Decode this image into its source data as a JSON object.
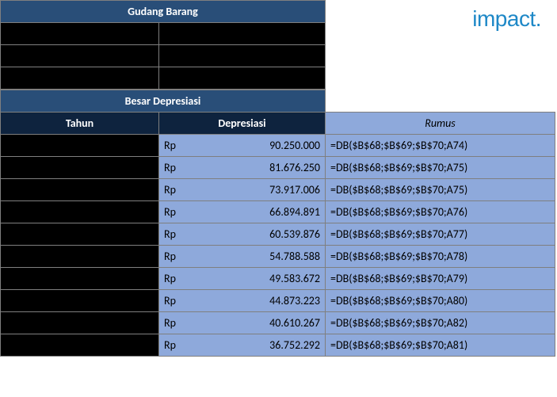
{
  "logo_text": "impact.",
  "colors": {
    "navy_header": "#294e78",
    "navy_dark": "#0e233e",
    "black": "#000000",
    "blue_cell": "#8ea9db",
    "border": "#7f7f7f",
    "logo_color": "#1e88c7",
    "white": "#ffffff"
  },
  "top_table": {
    "title": "Gudang Barang",
    "rows": [
      {
        "label": "",
        "value": ""
      },
      {
        "label": "",
        "value": ""
      },
      {
        "label": "",
        "value": ""
      }
    ]
  },
  "dep_table": {
    "section_title": "Besar Depresiasi",
    "col_year": "Tahun",
    "col_dep": "Depresiasi",
    "col_formula": "Rumus",
    "currency": "Rp",
    "rows": [
      {
        "year": "",
        "value": "90.250.000",
        "formula": "=DB($B$68;$B$69;$B$70;A74)"
      },
      {
        "year": "",
        "value": "81.676.250",
        "formula": "=DB($B$68;$B$69;$B$70;A75)"
      },
      {
        "year": "",
        "value": "73.917.006",
        "formula": "=DB($B$68;$B$69;$B$70;A75)"
      },
      {
        "year": "",
        "value": "66.894.891",
        "formula": "=DB($B$68;$B$69;$B$70;A76)"
      },
      {
        "year": "",
        "value": "60.539.876",
        "formula": "=DB($B$68;$B$69;$B$70;A77)"
      },
      {
        "year": "",
        "value": "54.788.588",
        "formula": "=DB($B$68;$B$69;$B$70;A78)"
      },
      {
        "year": "",
        "value": "49.583.672",
        "formula": "=DB($B$68;$B$69;$B$70;A79)"
      },
      {
        "year": "",
        "value": "44.873.223",
        "formula": "=DB($B$68;$B$69;$B$70;A80)"
      },
      {
        "year": "",
        "value": "40.610.267",
        "formula": "=DB($B$68;$B$69;$B$70;A82)"
      },
      {
        "year": "",
        "value": "36.752.292",
        "formula": "=DB($B$68;$B$69;$B$70;A81)"
      }
    ]
  }
}
